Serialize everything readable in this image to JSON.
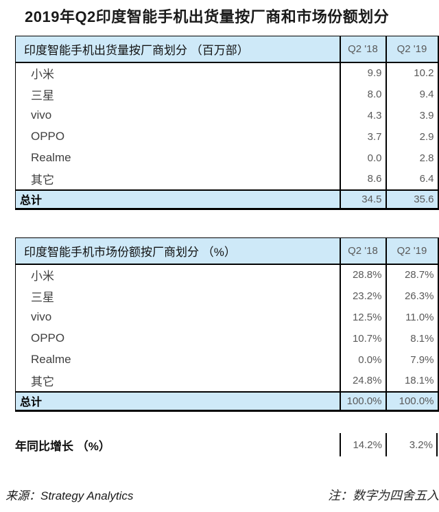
{
  "title": "2019年Q2印度智能手机出货量按厂商和市场份额划分",
  "colors": {
    "header_bg": "#cee9f8",
    "border": "#000000",
    "value_text": "#595959",
    "title_text": "#1a1a1a"
  },
  "shipments_table": {
    "caption": "印度智能手机出货量按厂商划分 （百万部）",
    "col1": "Q2 '18",
    "col2": "Q2 '19",
    "rows": [
      {
        "label": "小米",
        "v1": "9.9",
        "v2": "10.2"
      },
      {
        "label": "三星",
        "v1": "8.0",
        "v2": "9.4"
      },
      {
        "label": "vivo",
        "v1": "4.3",
        "v2": "3.9"
      },
      {
        "label": "OPPO",
        "v1": "3.7",
        "v2": "2.9"
      },
      {
        "label": "Realme",
        "v1": "0.0",
        "v2": "2.8"
      },
      {
        "label": "其它",
        "v1": "8.6",
        "v2": "6.4"
      }
    ],
    "total": {
      "label": "总计",
      "v1": "34.5",
      "v2": "35.6"
    }
  },
  "share_table": {
    "caption": "印度智能手机市场份额按厂商划分 （%）",
    "col1": "Q2 '18",
    "col2": "Q2 '19",
    "rows": [
      {
        "label": "小米",
        "v1": "28.8%",
        "v2": "28.7%"
      },
      {
        "label": "三星",
        "v1": "23.2%",
        "v2": "26.3%"
      },
      {
        "label": "vivo",
        "v1": "12.5%",
        "v2": "11.0%"
      },
      {
        "label": "OPPO",
        "v1": "10.7%",
        "v2": "8.1%"
      },
      {
        "label": "Realme",
        "v1": "0.0%",
        "v2": "7.9%"
      },
      {
        "label": "其它",
        "v1": "24.8%",
        "v2": "18.1%"
      }
    ],
    "total": {
      "label": "总计",
      "v1": "100.0%",
      "v2": "100.0%"
    }
  },
  "growth_row": {
    "label": "年同比增长 （%）",
    "v1": "14.2%",
    "v2": "3.2%"
  },
  "footer": {
    "source": "来源：Strategy Analytics",
    "note": "注：数字为四舍五入"
  },
  "chart_data": [
    {
      "type": "table",
      "title": "印度智能手机出货量按厂商划分（百万部）",
      "categories": [
        "小米",
        "三星",
        "vivo",
        "OPPO",
        "Realme",
        "其它",
        "总计"
      ],
      "series": [
        {
          "name": "Q2 '18",
          "values": [
            9.9,
            8.0,
            4.3,
            3.7,
            0.0,
            8.6,
            34.5
          ]
        },
        {
          "name": "Q2 '19",
          "values": [
            10.2,
            9.4,
            3.9,
            2.9,
            2.8,
            6.4,
            35.6
          ]
        }
      ]
    },
    {
      "type": "table",
      "title": "印度智能手机市场份额按厂商划分（%）",
      "categories": [
        "小米",
        "三星",
        "vivo",
        "OPPO",
        "Realme",
        "其它",
        "总计"
      ],
      "series": [
        {
          "name": "Q2 '18",
          "values": [
            28.8,
            23.2,
            12.5,
            10.7,
            0.0,
            24.8,
            100.0
          ]
        },
        {
          "name": "Q2 '19",
          "values": [
            28.7,
            26.3,
            11.0,
            8.1,
            7.9,
            18.1,
            100.0
          ]
        }
      ]
    },
    {
      "type": "table",
      "title": "年同比增长（%）",
      "categories": [
        "Q2 '18",
        "Q2 '19"
      ],
      "values": [
        14.2,
        3.2
      ]
    }
  ]
}
